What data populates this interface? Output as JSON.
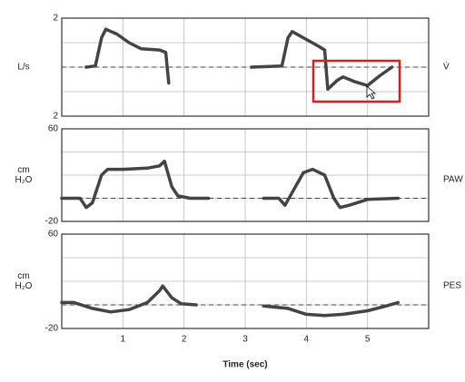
{
  "chart_data": [
    {
      "type": "line",
      "ylabel": [
        "L/s"
      ],
      "ylim": [
        -2,
        2
      ],
      "yticks": [
        {
          "value": -2,
          "label": "2"
        },
        2
      ],
      "xlim": [
        0,
        6
      ],
      "x": [
        0.4,
        0.55,
        0.65,
        0.72,
        0.9,
        1.1,
        1.3,
        1.6,
        1.7,
        1.75,
        null,
        3.1,
        3.6,
        3.7,
        3.77,
        3.95,
        4.2,
        4.3,
        4.35,
        4.5,
        4.6,
        4.8,
        5.0,
        5.2,
        5.4
      ],
      "series": [
        {
          "name": "V̇",
          "color": "#444444",
          "values": [
            0,
            0.05,
            1.2,
            1.55,
            1.35,
            1.0,
            0.75,
            0.7,
            0.6,
            -0.65,
            null,
            0,
            0.05,
            1.2,
            1.45,
            1.2,
            0.85,
            0.7,
            -0.9,
            -0.55,
            -0.4,
            -0.6,
            -0.75,
            -0.35,
            0
          ]
        }
      ]
    },
    {
      "type": "line",
      "ylabel": [
        "cm",
        "H₂O"
      ],
      "ylim": [
        -20,
        60
      ],
      "yticks": [
        -20,
        60
      ],
      "xlim": [
        0,
        6
      ],
      "x": [
        0.0,
        0.3,
        0.4,
        0.5,
        0.65,
        0.75,
        1.0,
        1.4,
        1.6,
        1.68,
        1.8,
        1.9,
        2.1,
        2.4,
        null,
        3.3,
        3.55,
        3.65,
        3.8,
        3.95,
        4.1,
        4.3,
        4.45,
        4.55,
        4.7,
        5.0,
        5.5
      ],
      "series": [
        {
          "name": "PAW",
          "color": "#444444",
          "values": [
            0,
            0,
            -8,
            -4,
            20,
            25,
            25,
            26,
            28,
            32,
            10,
            2,
            0,
            0,
            null,
            0,
            0,
            -6,
            8,
            22,
            25,
            20,
            0,
            -8,
            -6,
            -1,
            0
          ]
        }
      ]
    },
    {
      "type": "line",
      "ylabel": [
        "cm",
        "H₂O"
      ],
      "ylim": [
        -20,
        60
      ],
      "yticks": [
        -20,
        60
      ],
      "xlim": [
        0,
        6
      ],
      "xticks": [
        1,
        2,
        3,
        4,
        5
      ],
      "xlabel": "Time (sec)",
      "x": [
        0.0,
        0.2,
        0.5,
        0.8,
        1.1,
        1.4,
        1.6,
        1.65,
        1.8,
        1.95,
        2.2,
        null,
        3.3,
        3.7,
        4.0,
        4.3,
        4.6,
        5.0,
        5.3,
        5.5
      ],
      "series": [
        {
          "name": "PES",
          "color": "#444444",
          "values": [
            2,
            2,
            -3,
            -6,
            -4,
            2,
            12,
            16,
            6,
            1,
            0,
            null,
            -1,
            -3,
            -8,
            -9,
            -8,
            -5,
            -1,
            2
          ]
        }
      ]
    }
  ]
}
